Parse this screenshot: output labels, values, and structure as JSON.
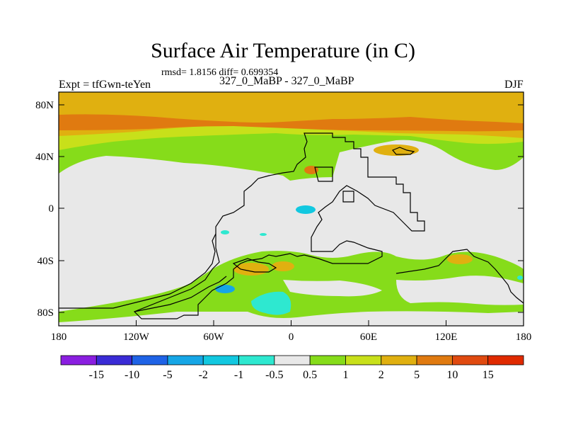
{
  "title": "Surface Air Temperature (in C)",
  "stats": "rmsd= 1.8156 diff= 0.699354",
  "experiment": "Expt = tfGwn-teYen",
  "subtitle": "327_0_MaBP - 327_0_MaBP",
  "season": "DJF",
  "axes": {
    "y_ticks": [
      "80N",
      "40N",
      "0",
      "40S",
      "80S"
    ],
    "x_ticks": [
      "180",
      "120W",
      "60W",
      "0",
      "60E",
      "120E",
      "180"
    ]
  },
  "colorbar": {
    "labels": [
      "-15",
      "-10",
      "-5",
      "-2",
      "-1",
      "-0.5",
      "0.5",
      "1",
      "2",
      "5",
      "10",
      "15"
    ],
    "colors": [
      "#8a1ee0",
      "#3a2bd6",
      "#1f63e6",
      "#16a6e6",
      "#12c8e0",
      "#2ee8d0",
      "#e8e8e8",
      "#86dc1a",
      "#c8e01a",
      "#e0b010",
      "#e07a10",
      "#e04a10",
      "#e02a00"
    ]
  },
  "map_colors": {
    "neutral": "#e8e8e8",
    "band_1": "#86dc1a",
    "band_2": "#c8e01a",
    "band_5": "#e0b010",
    "band_10": "#e07a10",
    "band_neg1": "#2ee8d0",
    "band_neg2": "#12c8e0",
    "band_neg5": "#16a6e6"
  }
}
